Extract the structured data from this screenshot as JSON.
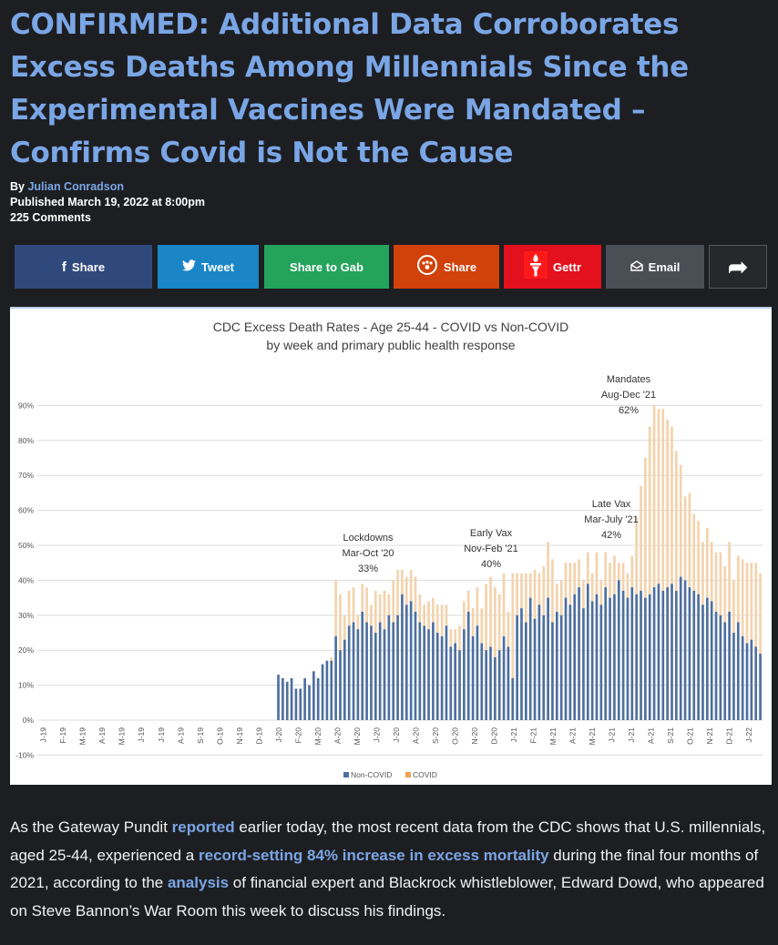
{
  "article": {
    "headline": "CONFIRMED: Additional Data Corroborates Excess Deaths Among Millennials Since the Experimental Vaccines Were Mandated – Confirms Covid is Not the Cause",
    "by_label": "By ",
    "author": "Julian Conradson",
    "published": "Published March 19, 2022 at 8:00pm",
    "comments": "225 Comments"
  },
  "share_bar": {
    "facebook": "Share",
    "twitter": "Tweet",
    "gab": "Share to Gab",
    "parler": "Share",
    "gettr": "Gettr",
    "email": "Email",
    "more_glyph": "➦",
    "colors": {
      "facebook": "#30497c",
      "twitter": "#1b86c7",
      "gab": "#24a35c",
      "parler": "#d1410a",
      "gettr": "#e3101d",
      "email": "#4a4e55",
      "more": "#26272b"
    }
  },
  "chart_data": {
    "type": "bar",
    "title": "CDC Excess Death Rates - Age 25-44 - COVID vs Non-COVID",
    "subtitle": "by week and primary public health response",
    "ylim": [
      -10,
      95
    ],
    "yticks": [
      "-10%",
      "0%",
      "10%",
      "20%",
      "30%",
      "40%",
      "50%",
      "60%",
      "70%",
      "80%",
      "90%"
    ],
    "grid": true,
    "legend_position": "bottom-center",
    "series": [
      {
        "name": "Non-COVID",
        "color": "#4e6f9f",
        "values": [
          0,
          0,
          0,
          0,
          0,
          0,
          0,
          0,
          0,
          0,
          0,
          0,
          0,
          0,
          0,
          0,
          0,
          0,
          0,
          0,
          0,
          0,
          0,
          0,
          0,
          0,
          0,
          0,
          0,
          0,
          0,
          0,
          0,
          0,
          0,
          0,
          0,
          0,
          0,
          0,
          0,
          0,
          0,
          0,
          0,
          0,
          0,
          0,
          0,
          0,
          0,
          0,
          0,
          0,
          13,
          12,
          11,
          12,
          9,
          9,
          12,
          10,
          14,
          12,
          16,
          17,
          17,
          24,
          20,
          23,
          27,
          28,
          26,
          31,
          28,
          27,
          25,
          28,
          26,
          30,
          28,
          30,
          36,
          33,
          34,
          31,
          28,
          27,
          26,
          28,
          25,
          24,
          27,
          21,
          22,
          20,
          26,
          31,
          24,
          27,
          22,
          20,
          21,
          18,
          20,
          24,
          21,
          12,
          30,
          32,
          28,
          35,
          29,
          33,
          30,
          35,
          28,
          31,
          30,
          35,
          33,
          36,
          38,
          32,
          39,
          34,
          36,
          33,
          38,
          35,
          36,
          40,
          37,
          35,
          38,
          36,
          37,
          35,
          36,
          38,
          39,
          37,
          38,
          39,
          37,
          41,
          40,
          38,
          37,
          36,
          33,
          35,
          34,
          31,
          30,
          28,
          31,
          25,
          28,
          24,
          22,
          23,
          21,
          19
        ],
        "categories": [
          "J-19",
          "F-19",
          "M-19",
          "A-19",
          "M-19",
          "J-19",
          "J-19",
          "A-19",
          "S-19",
          "O-19",
          "N-19",
          "D-19",
          "J-20",
          "F-20",
          "M-20",
          "A-20",
          "M-20",
          "J-20",
          "J-20",
          "A-20",
          "S-20",
          "O-20",
          "N-20",
          "D-20",
          "J-21",
          "F-21",
          "M-21",
          "A-21",
          "M-21",
          "J-21",
          "J-21",
          "A-21",
          "S-21",
          "O-21",
          "N-21",
          "D-21",
          "J-22"
        ]
      },
      {
        "name": "COVID",
        "color": "#f3d3ad",
        "values": [
          0,
          0,
          0,
          0,
          0,
          0,
          0,
          0,
          0,
          0,
          0,
          0,
          0,
          0,
          0,
          0,
          0,
          0,
          0,
          0,
          0,
          0,
          0,
          0,
          0,
          0,
          0,
          0,
          0,
          0,
          0,
          0,
          0,
          0,
          0,
          0,
          0,
          0,
          0,
          0,
          0,
          0,
          0,
          0,
          0,
          0,
          0,
          0,
          0,
          0,
          0,
          0,
          0,
          0,
          0,
          0,
          0,
          0,
          0,
          0,
          0,
          0,
          0,
          0,
          0,
          0,
          1,
          16,
          16,
          7,
          10,
          10,
          4,
          8,
          10,
          6,
          12,
          8,
          11,
          6,
          12,
          13,
          7,
          8,
          9,
          10,
          8,
          6,
          8,
          7,
          8,
          9,
          6,
          5,
          4,
          7,
          8,
          6,
          8,
          11,
          10,
          19,
          20,
          20,
          16,
          18,
          10,
          30,
          12,
          10,
          14,
          7,
          14,
          9,
          14,
          16,
          18,
          8,
          10,
          10,
          12,
          9,
          8,
          8,
          9,
          8,
          12,
          7,
          10,
          10,
          11,
          5,
          8,
          7,
          9,
          22,
          30,
          40,
          48,
          52,
          50,
          52,
          48,
          45,
          40,
          32,
          24,
          27,
          22,
          21,
          18,
          20,
          17,
          17,
          18,
          16,
          20,
          15,
          19,
          22,
          23,
          22,
          24,
          23
        ],
        "categories_ref": "Non-COVID"
      }
    ],
    "annotations": [
      {
        "lines": [
          "Lockdowns",
          "Mar-Oct '20",
          "33%"
        ]
      },
      {
        "lines": [
          "Early Vax",
          "Nov-Feb '21",
          "40%"
        ]
      },
      {
        "lines": [
          "Late Vax",
          "Mar-July '21",
          "42%"
        ]
      },
      {
        "lines": [
          "Mandates",
          "Aug-Dec '21",
          "62%"
        ]
      }
    ]
  },
  "body": {
    "p1": "As the Gateway Pundit ",
    "link1": "reported",
    "p2": " earlier today, the most recent data from the CDC shows that U.S. millennials, aged 25-44, experienced a ",
    "link2": "record-setting 84% increase in excess mortality",
    "p3": " during the final four months of 2021, according to the ",
    "link3": "analysis",
    "p4": " of financial expert and Blackrock whistleblower, Edward Dowd, who appeared on Steve Bannon’s War Room this week to discuss his findings."
  }
}
